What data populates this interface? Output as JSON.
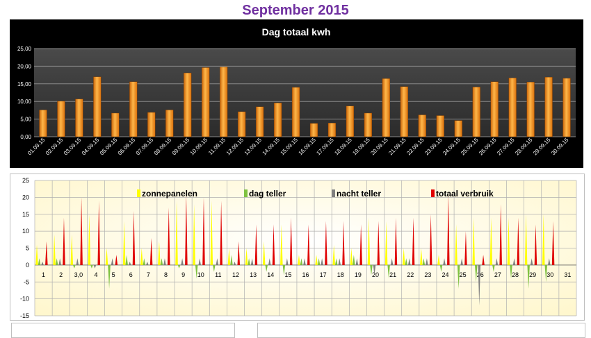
{
  "page": {
    "title": "September 2015"
  },
  "colors": {
    "title": "#7030a0",
    "bar_fill": "#f08a1c",
    "plot_bg1": "#3a3a3a",
    "plot_bg2": "#fffbe0",
    "zonnepanelen": "#ffff00",
    "dag_teller": "#7fc241",
    "nacht_teller": "#7f7f7f",
    "totaal_verbruik": "#e00000"
  },
  "chart_data": [
    {
      "type": "bar",
      "title": "Dag totaal kwh",
      "categories": [
        "01.09.15",
        "02.09.15",
        "03.09.15",
        "04.09.15",
        "05.09.15",
        "06.09.15",
        "07.09.15",
        "08.09.15",
        "09.09.15",
        "10.09.15",
        "11.09.15",
        "12.09.15",
        "13.09.15",
        "14.09.15",
        "15.09.15",
        "16.09.15",
        "17.09.15",
        "18.09.15",
        "19.09.15",
        "20.09.15",
        "21.09.15",
        "22.09.15",
        "23.09.15",
        "24.09.15",
        "25.09.15",
        "26.09.15",
        "27.09.15",
        "28.09.15",
        "29.09.15",
        "30.09.15"
      ],
      "values": [
        7.6,
        10.1,
        10.7,
        17.0,
        6.7,
        15.6,
        6.9,
        7.6,
        18.1,
        19.6,
        19.8,
        7.1,
        8.5,
        9.6,
        14.0,
        3.8,
        3.9,
        8.7,
        6.7,
        16.5,
        14.2,
        6.2,
        6.0,
        4.6,
        14.1,
        15.6,
        16.7,
        15.5,
        16.9,
        16.6
      ],
      "yticks": [
        "0,00",
        "5,00",
        "10,00",
        "15,00",
        "20,00",
        "25,00"
      ],
      "ylim": [
        0,
        25
      ],
      "grid": true
    },
    {
      "type": "line",
      "legend": [
        "zonnepanelen",
        "dag teller",
        "nacht teller",
        "totaal verbruik"
      ],
      "legend_position": "top",
      "x_labels": [
        "1",
        "2",
        "3,0",
        "4",
        "5",
        "6",
        "7",
        "8",
        "9",
        "10",
        "11",
        "12",
        "13",
        "14",
        "15",
        "16",
        "17",
        "18",
        "19",
        "20",
        "21",
        "22",
        "23",
        "24",
        "25",
        "26",
        "27",
        "28",
        "29",
        "30",
        "31"
      ],
      "yticks": [
        "-15",
        "-10",
        "-5",
        "0",
        "5",
        "10",
        "15",
        "20",
        "25"
      ],
      "ylim": [
        -15,
        25
      ],
      "grid": true,
      "series": [
        {
          "name": "zonnepanelen",
          "values": [
            6,
            9,
            9,
            15,
            5,
            13,
            5,
            7,
            19,
            18,
            19,
            5,
            5,
            7,
            12,
            3,
            3,
            6,
            5,
            14,
            13,
            5,
            5,
            3,
            12,
            14,
            14,
            14,
            15,
            15
          ]
        },
        {
          "name": "dag teller",
          "values": [
            2,
            2,
            -1,
            -1,
            -7,
            3,
            2,
            2,
            -1,
            -4,
            -2,
            3,
            2,
            -2,
            -3,
            2,
            2,
            2,
            3,
            -3,
            -4,
            2,
            2,
            -2,
            -7,
            -5,
            -2,
            -4,
            -7,
            -5
          ]
        },
        {
          "name": "nacht teller",
          "values": [
            1,
            2,
            2,
            -1,
            2,
            1,
            1,
            2,
            2,
            2,
            2,
            1,
            2,
            2,
            2,
            2,
            2,
            2,
            2,
            -3,
            2,
            2,
            2,
            2,
            2,
            -12,
            2,
            2,
            2,
            2
          ]
        },
        {
          "name": "totaal verbruik",
          "values": [
            7,
            14,
            20,
            19,
            3,
            16,
            8,
            17,
            21,
            20,
            19,
            7,
            12,
            12,
            14,
            12,
            13,
            13,
            12,
            13,
            14,
            14,
            15,
            21,
            10,
            3,
            18,
            14,
            12,
            13
          ]
        }
      ]
    }
  ]
}
